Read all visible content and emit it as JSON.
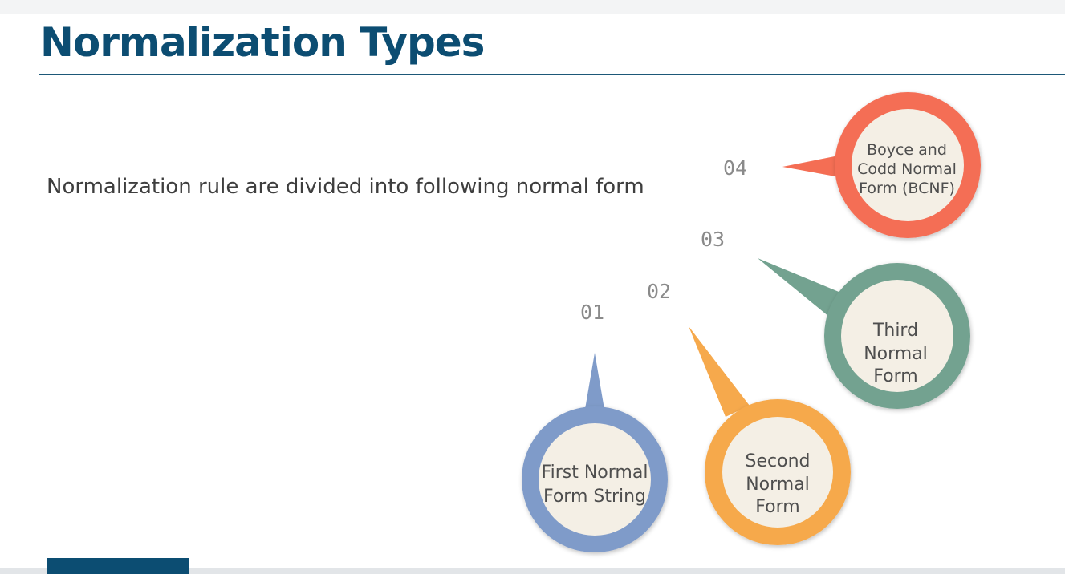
{
  "slide": {
    "title": "Normalization Types",
    "subtitle": "Normalization rule are divided into following normal form"
  },
  "forms": [
    {
      "number": "01",
      "label_lines": [
        "First Normal",
        "Form String"
      ],
      "color": "#7f9bc9"
    },
    {
      "number": "02",
      "label_lines": [
        "Second",
        "Normal",
        "Form"
      ],
      "color": "#f6a94c"
    },
    {
      "number": "03",
      "label_lines": [
        "Third",
        "Normal",
        "Form"
      ],
      "color": "#73a290"
    },
    {
      "number": "04",
      "label_lines": [
        "Boyce and",
        "Codd Normal",
        "Form (BCNF)"
      ],
      "color": "#f46e54"
    }
  ],
  "colors": {
    "title": "#0c4d72",
    "inner_fill": "#f4efe5"
  }
}
